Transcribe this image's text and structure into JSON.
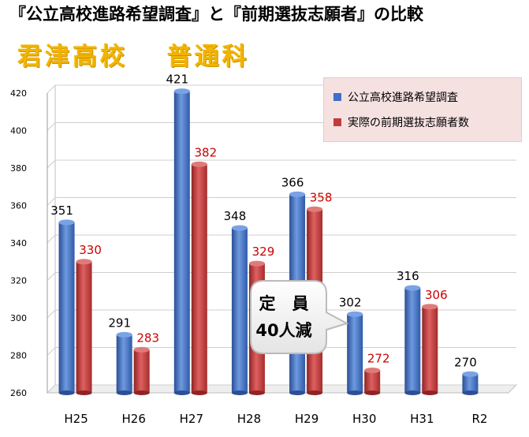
{
  "title": "『公立高校進路希望調査』と『前期選抜志願者』の比較",
  "subtitle": "君津高校　 普通科",
  "colors": {
    "series1": "#3f6fc6",
    "series2": "#c23b3b",
    "label1": "#000000",
    "label2": "#cc0000",
    "subtitle": "#f2b400"
  },
  "callout": {
    "line1": "定　員",
    "line2": "40人減"
  },
  "chart_data": {
    "type": "bar",
    "title": "",
    "xlabel": "",
    "ylabel": "",
    "categories": [
      "H25",
      "H26",
      "H27",
      "H28",
      "H29",
      "H30",
      "H31",
      "R2"
    ],
    "series": [
      {
        "name": "公立高校進路希望調査",
        "values": [
          351,
          291,
          421,
          348,
          366,
          302,
          316,
          270
        ]
      },
      {
        "name": "実際の前期選抜志願者数",
        "values": [
          330,
          283,
          382,
          329,
          358,
          272,
          306,
          null
        ]
      }
    ],
    "ylim": [
      260,
      420
    ],
    "yticks": [
      260,
      280,
      300,
      320,
      340,
      360,
      380,
      400,
      420
    ],
    "grid": true,
    "legend_position": "top-right"
  }
}
